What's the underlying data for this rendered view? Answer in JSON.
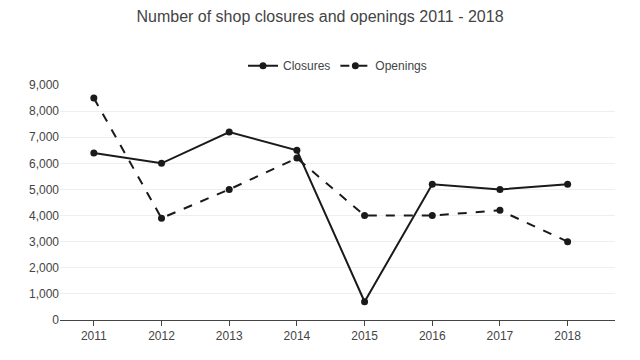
{
  "chart_data": {
    "type": "line",
    "title": "Number of shop closures and openings 2011 - 2018",
    "x": [
      2011,
      2012,
      2013,
      2014,
      2015,
      2016,
      2017,
      2018
    ],
    "series": [
      {
        "name": "Closures",
        "color": "#1a1a1a",
        "line_style": "solid",
        "marker": "circle",
        "values": [
          6400,
          6000,
          7200,
          6500,
          700,
          5200,
          5000,
          5200
        ]
      },
      {
        "name": "Openings",
        "color": "#1a1a1a",
        "line_style": "dashed",
        "marker": "circle",
        "values": [
          8500,
          3900,
          5000,
          6200,
          4000,
          4000,
          4200,
          3000
        ]
      }
    ],
    "xlim": [
      2010.5,
      2018.7
    ],
    "xticks": [
      2011,
      2012,
      2013,
      2014,
      2015,
      2016,
      2017,
      2018
    ],
    "ylim": [
      0,
      9000
    ],
    "yticks": [
      0,
      {
        "value": 1000,
        "label": "1,000"
      },
      {
        "value": 2000,
        "label": "2,000"
      },
      {
        "value": 3000,
        "label": "3,000"
      },
      {
        "value": 4000,
        "label": "4,000"
      },
      {
        "value": 5000,
        "label": "5,000"
      },
      {
        "value": 6000,
        "label": "6,000"
      },
      {
        "value": 7000,
        "label": "7,000"
      },
      {
        "value": 8000,
        "label": "8,000"
      },
      {
        "value": 9000,
        "label": "9,000"
      }
    ],
    "grid": true,
    "legend": "upper center"
  }
}
